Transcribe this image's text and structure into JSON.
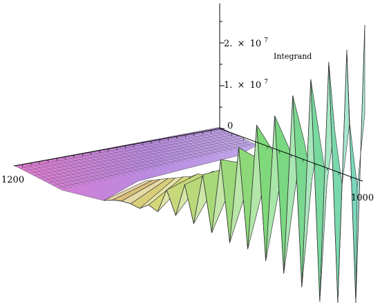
{
  "chart_data": {
    "type": "surface3d",
    "title": "",
    "zlabel": "Integrand",
    "axes": {
      "z_ticks": [
        {
          "value": 0,
          "label": "0"
        },
        {
          "value": 10000000,
          "mantissa": "1.",
          "times": "×",
          "base": "10",
          "exponent": "7"
        },
        {
          "value": 20000000,
          "mantissa": "2.",
          "times": "×",
          "base": "10",
          "exponent": "7"
        }
      ],
      "x_ticks": [
        {
          "value": 1200,
          "label": "1200"
        }
      ],
      "y_ticks": [
        {
          "value": 1000,
          "label": "1000"
        }
      ],
      "zlim": [
        -25000000,
        27000000
      ]
    },
    "grid": true,
    "mesh_lines": true,
    "colors": {
      "flat_region": "#d77ad8",
      "mid_region": "#e8e0c0",
      "peak_region": "#b8e8c8",
      "far_region": "#40e8c8",
      "mesh": "#333333"
    },
    "profile_front": {
      "x": [
        0,
        1,
        2,
        3,
        4,
        5,
        6,
        7,
        8,
        9,
        10,
        11,
        12,
        13,
        14,
        15,
        16,
        17,
        18,
        19,
        20,
        21,
        22,
        23,
        24,
        25,
        26,
        27,
        28,
        29
      ],
      "z_million": [
        0,
        0,
        -0.5,
        -1.5,
        -3,
        -2,
        -4,
        2,
        -5,
        3,
        -7,
        5,
        -9,
        8,
        -11,
        10,
        -12,
        14,
        -14,
        15,
        -16,
        18,
        -18,
        20,
        -20,
        22,
        -21,
        23,
        -22,
        26
      ]
    }
  }
}
